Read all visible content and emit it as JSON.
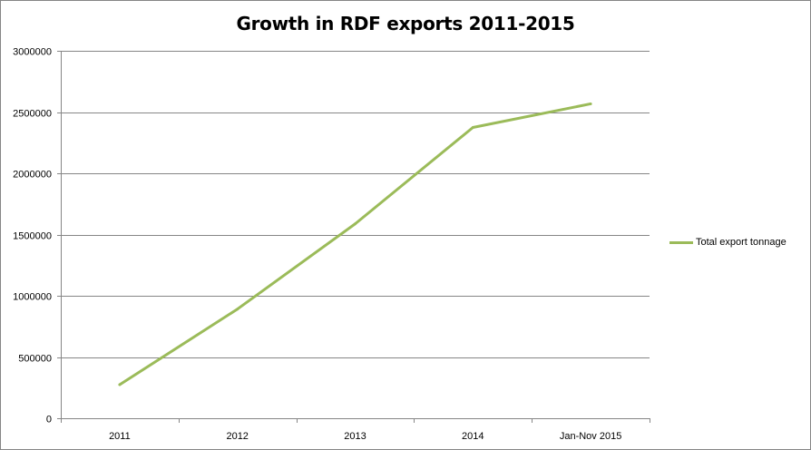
{
  "chart_data": {
    "type": "line",
    "title": "Growth in RDF exports 2011-2015",
    "xlabel": "",
    "ylabel": "",
    "categories": [
      "2011",
      "2012",
      "2013",
      "2014",
      "Jan-Nov 2015"
    ],
    "series": [
      {
        "name": "Total export tonnage",
        "color": "#9BBB59",
        "values": [
          274000,
          891000,
          1587000,
          2374000,
          2567000
        ]
      }
    ],
    "ylim": [
      0,
      3000000
    ],
    "yticks": [
      0,
      500000,
      1000000,
      1500000,
      2000000,
      2500000,
      3000000
    ],
    "ytick_labels": [
      "0",
      "500000",
      "1000000",
      "1500000",
      "2000000",
      "2500000",
      "3000000"
    ],
    "grid": true,
    "legend": "right"
  }
}
